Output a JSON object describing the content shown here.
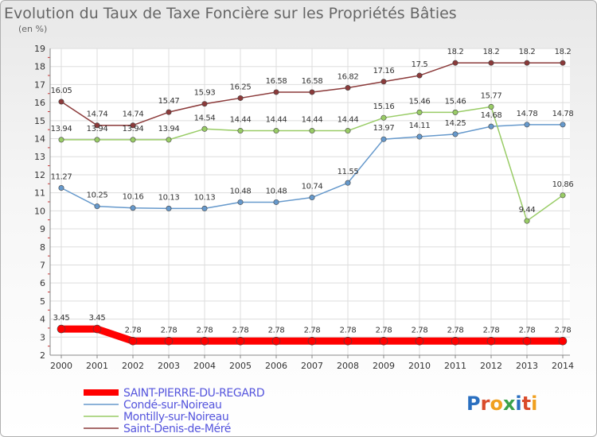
{
  "chart_data": {
    "type": "line",
    "title": "Evolution du Taux de Taxe Foncière sur les Propriétés Bâties",
    "subtitle": "(en %)",
    "x": [
      "2000",
      "2001",
      "2002",
      "2003",
      "2004",
      "2005",
      "2006",
      "2007",
      "2008",
      "2009",
      "2010",
      "2011",
      "2012",
      "2013",
      "2014"
    ],
    "ylim": [
      2,
      19
    ],
    "yticks": [
      2,
      3,
      4,
      5,
      6,
      7,
      8,
      9,
      10,
      11,
      12,
      13,
      14,
      15,
      16,
      17,
      18,
      19
    ],
    "grid": true,
    "legend_position": "bottom-left",
    "series": [
      {
        "name": "SAINT-PIERRE-DU-REGARD",
        "color": "#ff0000",
        "values": [
          3.45,
          3.45,
          2.78,
          2.78,
          2.78,
          2.78,
          2.78,
          2.78,
          2.78,
          2.78,
          2.78,
          2.78,
          2.78,
          2.78,
          2.78
        ],
        "labels": [
          "3.45",
          "3.45",
          "2.78",
          "2.78",
          "2.78",
          "2.78",
          "2.78",
          "2.78",
          "2.78",
          "2.78",
          "2.78",
          "2.78",
          "2.78",
          "2.78",
          "2.78"
        ]
      },
      {
        "name": "Condé-sur-Noireau",
        "color": "#6699cc",
        "values": [
          11.27,
          10.25,
          10.16,
          10.13,
          10.13,
          10.48,
          10.48,
          10.74,
          11.55,
          13.97,
          14.11,
          14.25,
          14.68,
          14.78,
          14.78
        ],
        "labels": [
          "11.27",
          "10.25",
          "10.16",
          "10.13",
          "10.13",
          "10.48",
          "10.48",
          "10.74",
          "11.55",
          "13.97",
          "14.11",
          "14.25",
          "14.68",
          "14.78",
          "14.78"
        ]
      },
      {
        "name": "Montilly-sur-Noireau",
        "color": "#99cc66",
        "values": [
          13.94,
          13.94,
          13.94,
          13.94,
          14.54,
          14.44,
          14.44,
          14.44,
          14.44,
          15.16,
          15.46,
          15.46,
          15.77,
          9.44,
          10.86
        ],
        "labels": [
          "13.94",
          "13.94",
          "13.94",
          "13.94",
          "14.54",
          "14.44",
          "14.44",
          "14.44",
          "14.44",
          "15.16",
          "15.46",
          "15.46",
          "15.77",
          "9.44",
          "10.86"
        ]
      },
      {
        "name": "Saint-Denis-de-Méré",
        "color": "#8b3a3a",
        "values": [
          16.05,
          14.74,
          14.74,
          15.47,
          15.93,
          16.25,
          16.58,
          16.58,
          16.82,
          17.16,
          17.5,
          18.2,
          18.2,
          18.2,
          18.2
        ],
        "labels": [
          "16.05",
          "14.74",
          "14.74",
          "15.47",
          "15.93",
          "16.25",
          "16.58",
          "16.58",
          "16.82",
          "17.16",
          "17.5",
          "18.2",
          "18.2",
          "18.2",
          "18.2"
        ]
      }
    ]
  },
  "logo": {
    "text": "Proxiti"
  }
}
